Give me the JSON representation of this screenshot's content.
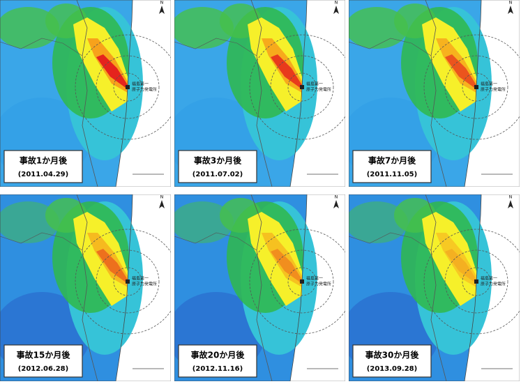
{
  "panels": [
    {
      "title": "事故1か月後",
      "date": "(2011.04.29)"
    },
    {
      "title": "事故3か月後",
      "date": "(2011.07.02)"
    },
    {
      "title": "事故7か月後",
      "date": "(2011.11.05)"
    },
    {
      "title": "事故15か月後",
      "date": "(2012.06.28)"
    },
    {
      "title": "事故20か月後",
      "date": "(2012.11.16)"
    },
    {
      "title": "事故30か月後",
      "date": "(2013.09.28)"
    }
  ],
  "map_labels": {
    "plant_line1": "福島第一",
    "plant_line2": "原子力発電所",
    "north": "N"
  }
}
